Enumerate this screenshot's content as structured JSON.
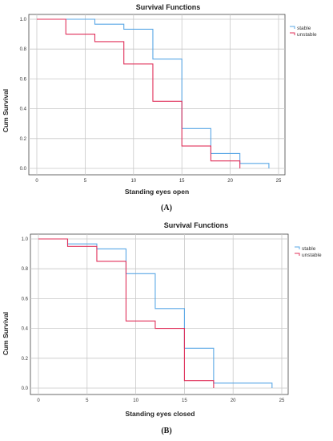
{
  "chart_data": [
    {
      "type": "line",
      "step": true,
      "title": "Survival Functions",
      "xlabel": "Standing eyes open",
      "ylabel": "Cum Survival",
      "panel_label": "(A)",
      "xlim": [
        0,
        25
      ],
      "ylim": [
        0,
        1.0
      ],
      "x_ticks": [
        "0",
        "5",
        "10",
        "15",
        "20",
        "25"
      ],
      "y_ticks": [
        "0.0",
        "0.2",
        "0.4",
        "0.6",
        "0.8",
        "1.0"
      ],
      "grid": true,
      "legend_position": "top-right",
      "series": [
        {
          "name": "stable",
          "color": "#5aa7e6",
          "x": [
            0,
            3,
            6,
            9,
            12,
            15,
            18,
            21,
            24
          ],
          "y": [
            1.0,
            1.0,
            0.967,
            0.933,
            0.733,
            0.267,
            0.1,
            0.033,
            0.0
          ]
        },
        {
          "name": "unstable",
          "color": "#e0305a",
          "x": [
            0,
            3,
            6,
            9,
            12,
            15,
            18,
            21
          ],
          "y": [
            1.0,
            0.9,
            0.85,
            0.7,
            0.45,
            0.15,
            0.05,
            0.0
          ]
        }
      ]
    },
    {
      "type": "line",
      "step": true,
      "title": "Survival Functions",
      "xlabel": "Standing eyes closed",
      "ylabel": "Cum Survival",
      "panel_label": "(B)",
      "xlim": [
        0,
        25
      ],
      "ylim": [
        0,
        1.0
      ],
      "x_ticks": [
        "0",
        "5",
        "10",
        "15",
        "20",
        "25"
      ],
      "y_ticks": [
        "0.0",
        "0.2",
        "0.4",
        "0.6",
        "0.8",
        "1.0"
      ],
      "grid": true,
      "legend_position": "top-right",
      "series": [
        {
          "name": "stable",
          "color": "#5aa7e6",
          "x": [
            0,
            3,
            6,
            9,
            12,
            15,
            18,
            24
          ],
          "y": [
            1.0,
            0.967,
            0.933,
            0.767,
            0.533,
            0.267,
            0.033,
            0.0
          ]
        },
        {
          "name": "unstable",
          "color": "#e0305a",
          "x": [
            0,
            3,
            6,
            9,
            12,
            15,
            18
          ],
          "y": [
            1.0,
            0.95,
            0.85,
            0.45,
            0.4,
            0.05,
            0.0
          ]
        }
      ]
    }
  ]
}
